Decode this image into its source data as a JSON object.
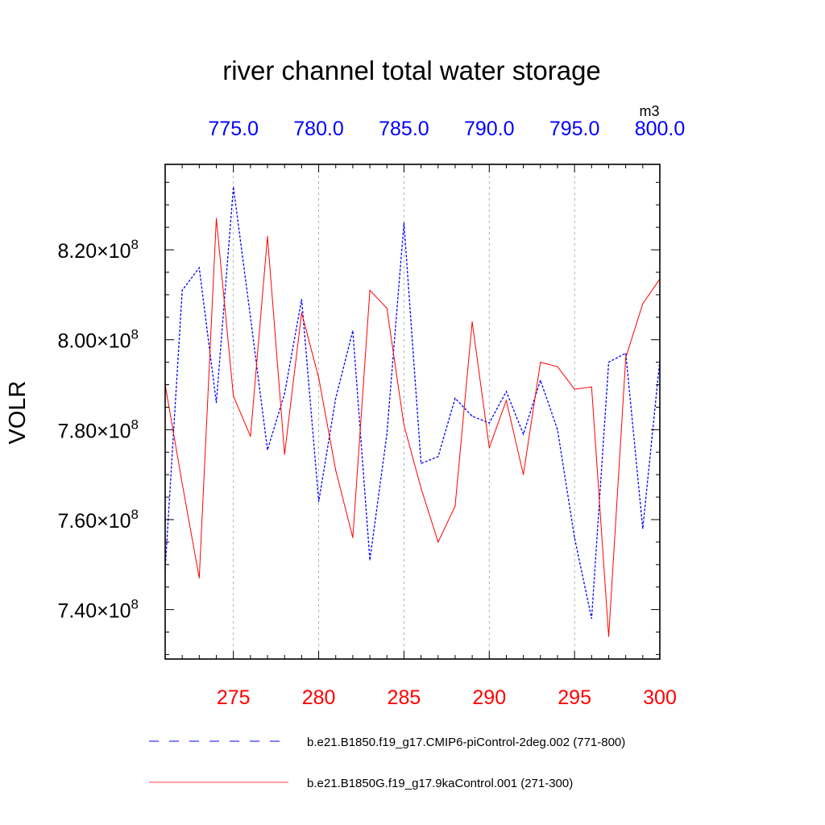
{
  "chart_data": {
    "type": "line",
    "title": "river channel total water storage",
    "ylabel": "VOLR",
    "units": "m3",
    "x_bottom": {
      "range": [
        271,
        300
      ],
      "ticks": [
        275,
        280,
        285,
        290,
        295,
        300
      ],
      "tick_labels": [
        "275",
        "280",
        "285",
        "290",
        "295",
        "300"
      ],
      "color": "#ff0000"
    },
    "x_top": {
      "range": [
        771,
        800
      ],
      "ticks": [
        775,
        780,
        785,
        790,
        795,
        800
      ],
      "tick_labels": [
        "775.0",
        "780.0",
        "785.0",
        "790.0",
        "795.0",
        "800.0"
      ],
      "color": "#0000ff"
    },
    "y": {
      "range": [
        729000000,
        839000000
      ],
      "ticks": [
        740000000,
        760000000,
        780000000,
        800000000,
        820000000
      ],
      "tick_mantissa": [
        "7.40",
        "7.60",
        "7.80",
        "8.00",
        "8.20"
      ],
      "tick_times": "×10",
      "tick_exponent": "8"
    },
    "series": [
      {
        "name": "b.e21.B1850.f19_g17.CMIP6-piControl-2deg.002 (771-800)",
        "axis": "top",
        "color": "#0000ff",
        "dash": true,
        "x": [
          771,
          772,
          773,
          774,
          775,
          776,
          777,
          778,
          779,
          780,
          781,
          782,
          783,
          784,
          785,
          786,
          787,
          788,
          789,
          790,
          791,
          792,
          793,
          794,
          795,
          796,
          797,
          798,
          799,
          800
        ],
        "values": [
          749000000,
          811000000,
          816000000,
          786000000,
          834000000,
          805000000,
          775500000,
          788000000,
          809000000,
          764000000,
          787000000,
          802000000,
          751000000,
          779000000,
          826000000,
          772500000,
          774000000,
          787000000,
          783000000,
          781500000,
          788500000,
          779000000,
          791000000,
          780000000,
          756000000,
          738000000,
          795000000,
          797000000,
          758000000,
          795500000
        ]
      },
      {
        "name": "b.e21.B1850G.f19_g17.9kaControl.001 (271-300)",
        "axis": "bottom",
        "color": "#ff0000",
        "dash": false,
        "x": [
          271,
          272,
          273,
          274,
          275,
          276,
          277,
          278,
          279,
          280,
          281,
          282,
          283,
          284,
          285,
          286,
          287,
          288,
          289,
          290,
          291,
          292,
          293,
          294,
          295,
          296,
          297,
          298,
          299,
          300
        ],
        "values": [
          790000000,
          768000000,
          747000000,
          827000000,
          787500000,
          778500000,
          823000000,
          774500000,
          806000000,
          791500000,
          771000000,
          756000000,
          811000000,
          807000000,
          781000000,
          767000000,
          755000000,
          763000000,
          804000000,
          776000000,
          786500000,
          770000000,
          795000000,
          794000000,
          789000000,
          789500000,
          734000000,
          796000000,
          808000000,
          813500000
        ]
      }
    ],
    "legend_position": "bottom"
  }
}
